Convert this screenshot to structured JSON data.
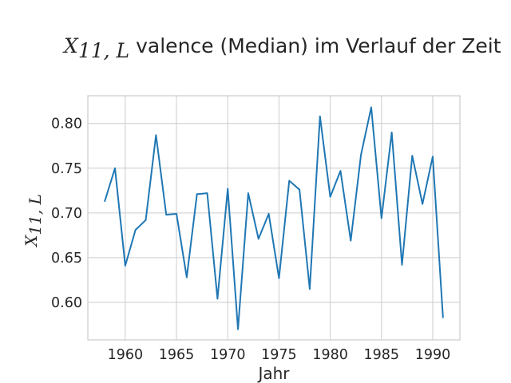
{
  "chart_data": {
    "type": "line",
    "title": "valence (Median) im Verlauf der Zeit",
    "title_symbol": "X",
    "title_symbol_sub": "11, L",
    "xlabel": "Jahr",
    "ylabel_symbol": "X",
    "ylabel_symbol_sub": "11, L",
    "xlim": [
      1956.35,
      1992.65
    ],
    "ylim": [
      0.558,
      0.831
    ],
    "xticks": [
      1960,
      1965,
      1970,
      1975,
      1980,
      1985,
      1990
    ],
    "yticks": [
      0.6,
      0.65,
      0.7,
      0.75,
      0.8
    ],
    "grid": true,
    "line_color": "#1f77b4",
    "series": [
      {
        "x": [
          1958,
          1959,
          1960,
          1961,
          1962,
          1963,
          1964,
          1965,
          1966,
          1967,
          1968,
          1969,
          1970,
          1971,
          1972,
          1973,
          1974,
          1975,
          1976,
          1977,
          1978,
          1979,
          1980,
          1981,
          1982,
          1983,
          1984,
          1985,
          1986,
          1987,
          1988,
          1989,
          1990,
          1991
        ],
        "y": [
          0.713,
          0.75,
          0.641,
          0.681,
          0.692,
          0.787,
          0.698,
          0.699,
          0.628,
          0.721,
          0.722,
          0.604,
          0.727,
          0.57,
          0.722,
          0.671,
          0.699,
          0.627,
          0.736,
          0.726,
          0.615,
          0.808,
          0.718,
          0.747,
          0.669,
          0.765,
          0.818,
          0.694,
          0.79,
          0.642,
          0.764,
          0.71,
          0.763,
          0.583
        ]
      }
    ]
  }
}
